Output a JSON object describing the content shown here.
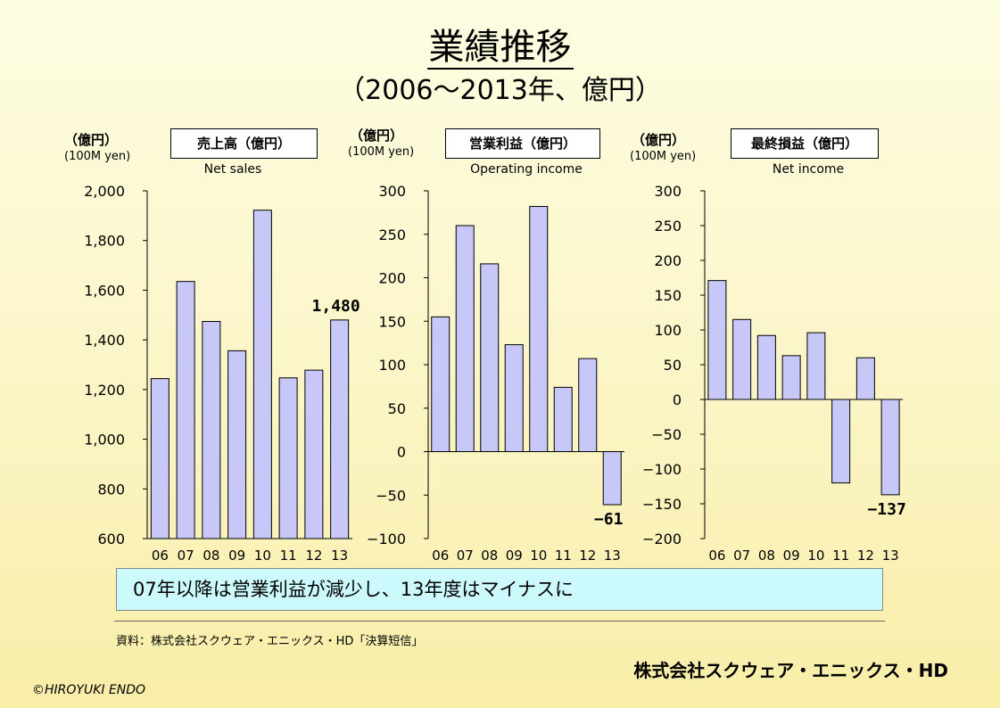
{
  "header": {
    "title": "業績推移",
    "subtitle": "（2006～2013年、億円）"
  },
  "chart_data": [
    {
      "type": "bar",
      "title": "売上高（億円）",
      "subtitle": "Net sales",
      "unit_jp": "（億円）",
      "unit_en": "(100M yen)",
      "categories": [
        "06",
        "07",
        "08",
        "09",
        "10",
        "11",
        "12",
        "13"
      ],
      "values": [
        1244,
        1635,
        1474,
        1356,
        1922,
        1247,
        1278,
        1480
      ],
      "ylim": [
        600,
        2000
      ],
      "ticks": [
        600,
        800,
        1000,
        1200,
        1400,
        1600,
        1800,
        2000
      ],
      "tick_labels": [
        "600",
        "800",
        "1,000",
        "1,200",
        "1,400",
        "1,600",
        "1,800",
        "2,000"
      ],
      "annotation": {
        "index": 7,
        "text": "1,480"
      },
      "bar_color": "#c8c8f8"
    },
    {
      "type": "bar",
      "title": "営業利益（億円）",
      "subtitle": "Operating income",
      "unit_jp": "（億円）",
      "unit_en": "(100M yen)",
      "categories": [
        "06",
        "07",
        "08",
        "09",
        "10",
        "11",
        "12",
        "13"
      ],
      "values": [
        155,
        260,
        216,
        123,
        282,
        74,
        107,
        -61
      ],
      "ylim": [
        -100,
        300
      ],
      "ticks": [
        -100,
        -50,
        0,
        50,
        100,
        150,
        200,
        250,
        300
      ],
      "tick_labels": [
        "−100",
        "−50",
        "0",
        "50",
        "100",
        "150",
        "200",
        "250",
        "300"
      ],
      "annotation": {
        "index": 7,
        "text": "−61"
      },
      "bar_color": "#c8c8f8"
    },
    {
      "type": "bar",
      "title": "最終損益（億円）",
      "subtitle": "Net income",
      "unit_jp": "（億円）",
      "unit_en": "(100M yen)",
      "categories": [
        "06",
        "07",
        "08",
        "09",
        "10",
        "11",
        "12",
        "13"
      ],
      "values": [
        171,
        115,
        92,
        63,
        96,
        -120,
        60,
        -137
      ],
      "ylim": [
        -200,
        300
      ],
      "ticks": [
        -200,
        -150,
        -100,
        -50,
        0,
        50,
        100,
        150,
        200,
        250,
        300
      ],
      "tick_labels": [
        "−200",
        "−150",
        "−100",
        "−50",
        "0",
        "50",
        "100",
        "150",
        "200",
        "250",
        "300"
      ],
      "annotation": {
        "index": 7,
        "text": "−137"
      },
      "bar_color": "#c8c8f8"
    }
  ],
  "callout": "07年以降は営業利益が減少し、13年度はマイナスに",
  "footer": {
    "source": "資料：株式会社スクウェア・エニックス・HD「決算短信」",
    "company": "株式会社スクウェア・エニックス・HD",
    "copyright": "©HIROYUKI ENDO"
  }
}
